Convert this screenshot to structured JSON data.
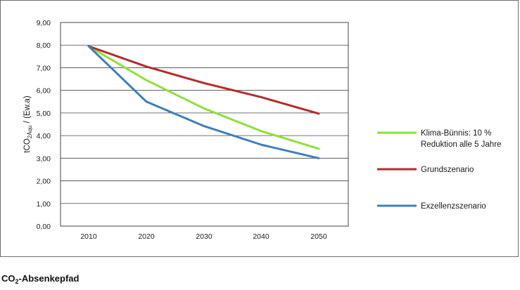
{
  "chart_data": {
    "type": "line",
    "x": [
      2010,
      2020,
      2030,
      2040,
      2050
    ],
    "yticks": [
      "0,00",
      "1,00",
      "2,00",
      "3,00",
      "4,00",
      "5,00",
      "6,00",
      "7,00",
      "8,00",
      "9,00"
    ],
    "xticks": [
      "2010",
      "2020",
      "2030",
      "2040",
      "2050"
    ],
    "ylim": [
      0,
      9
    ],
    "ylabel": {
      "main": "tCO",
      "sub": "2Äqu",
      "tail": " / (Ew.a)"
    },
    "grid": true,
    "legend_position": "right",
    "series": [
      {
        "key": "klima",
        "name_line1": "Klima-Bünnis: 10 %",
        "name_line2": "Reduktion alle 5 Jahre",
        "color": "#8fe03a",
        "values": [
          7.95,
          6.45,
          5.2,
          4.2,
          3.42
        ]
      },
      {
        "key": "grund",
        "name_line1": "Grundszenario",
        "name_line2": "",
        "color": "#b52a2a",
        "values": [
          7.95,
          7.05,
          6.32,
          5.7,
          4.97
        ]
      },
      {
        "key": "exzellenz",
        "name_line1": "Exzellenzszenario",
        "name_line2": "",
        "color": "#3f7fba",
        "values": [
          7.95,
          5.5,
          4.42,
          3.6,
          3.0
        ]
      }
    ]
  },
  "caption": {
    "main": "CO",
    "sub": "2",
    "tail": "-Absenkepfad"
  }
}
